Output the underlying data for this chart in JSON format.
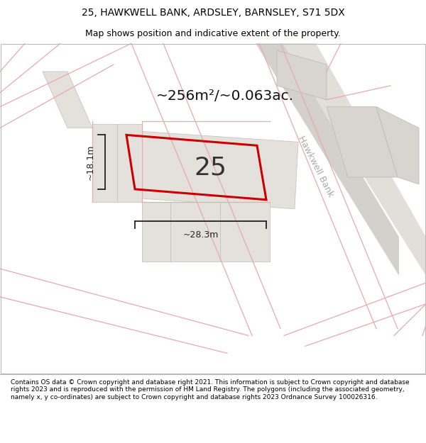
{
  "title_line1": "25, HAWKWELL BANK, ARDSLEY, BARNSLEY, S71 5DX",
  "title_line2": "Map shows position and indicative extent of the property.",
  "area_label": "~256m²/~0.063ac.",
  "dim_height": "~18.1m",
  "dim_width": "~28.3m",
  "plot_number": "25",
  "road_label": "Hawkwell Bank",
  "copyright_text": "Contains OS data © Crown copyright and database right 2021. This information is subject to Crown copyright and database rights 2023 and is reproduced with the permission of HM Land Registry. The polygons (including the associated geometry, namely x, y co-ordinates) are subject to Crown copyright and database rights 2023 Ordnance Survey 100026316.",
  "bg_color": "#f8f7f5",
  "map_bg_color": "#f8f7f5",
  "plot_fill": "#e8e6e3",
  "plot_edge": "#cc0000",
  "road_line_color": "#e8aaaa",
  "neighbor_fill": "#e0ddd9",
  "neighbor_edge": "#cccccc",
  "road_fill": "#e8e6e2",
  "road_strip_fill": "#d8d5d0",
  "title_bg": "#ffffff",
  "footer_bg": "#ffffff",
  "map_border": "#cccccc",
  "dim_color": "#222222",
  "label_color": "#aaaaaa"
}
